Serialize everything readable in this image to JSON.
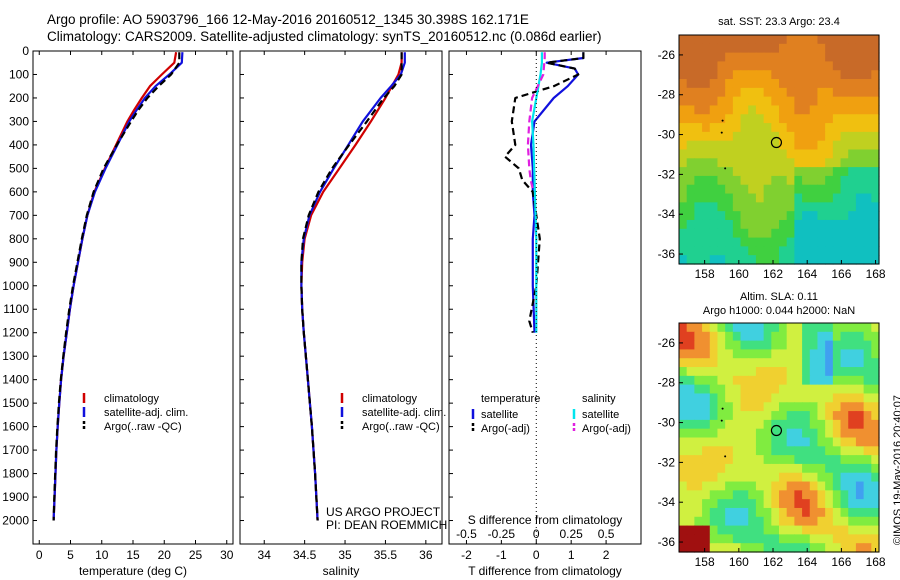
{
  "header": {
    "line1": "Argo profile: AO 5903796_166 12-May-2016 20160512_1345 30.398S 162.171E",
    "line2": "Climatology: CARS2009. Satellite-adjusted climatology: synTS_20160512.nc (0.086d earlier)"
  },
  "colors": {
    "climatology": "#d00000",
    "satellite": "#1010dd",
    "argo": "#000000",
    "s_satellite": "#00e5ee",
    "s_argo": "#e020e0"
  },
  "chart_data": [
    {
      "type": "line",
      "panel": "temperature",
      "xlabel": "temperature (deg C)",
      "ylabel": "",
      "xlim": [
        -1,
        31
      ],
      "ylim": [
        2100,
        0
      ],
      "x_ticks": [
        0,
        5,
        10,
        15,
        20,
        25,
        30
      ],
      "y_ticks": [
        0,
        100,
        200,
        300,
        400,
        500,
        600,
        700,
        800,
        900,
        1000,
        1100,
        1200,
        1300,
        1400,
        1500,
        1600,
        1700,
        1800,
        1900,
        2000
      ],
      "legend": [
        "climatology",
        "satellite-adj. clim.",
        "Argo(..raw -QC)"
      ],
      "legend_loc": "lower-center",
      "series": [
        {
          "name": "climatology",
          "style": "solid",
          "color": "#d00000",
          "depth": [
            5,
            50,
            100,
            150,
            200,
            250,
            300,
            400,
            500,
            600,
            700,
            800,
            900,
            1000,
            1100,
            1200,
            1300,
            1400,
            1500,
            1600,
            1700,
            1800,
            1900,
            2000
          ],
          "values": [
            21.9,
            21.6,
            19.6,
            17.7,
            16.4,
            15.2,
            14.1,
            12.3,
            10.5,
            8.8,
            7.7,
            6.9,
            6.2,
            5.5,
            4.9,
            4.4,
            3.9,
            3.5,
            3.2,
            2.95,
            2.75,
            2.6,
            2.45,
            2.3
          ]
        },
        {
          "name": "satellite-adj. clim.",
          "style": "solid",
          "color": "#1010dd",
          "depth": [
            5,
            50,
            100,
            150,
            200,
            250,
            300,
            400,
            500,
            600,
            700,
            800,
            900,
            1000,
            1100,
            1200,
            1300,
            1400,
            1500,
            1600,
            1700,
            1800,
            1900,
            2000
          ],
          "values": [
            22.9,
            22.8,
            20.8,
            18.6,
            16.9,
            15.6,
            14.4,
            12.5,
            10.6,
            8.9,
            7.7,
            6.9,
            6.2,
            5.5,
            4.9,
            4.4,
            3.9,
            3.5,
            3.2,
            2.95,
            2.75,
            2.6,
            2.45,
            2.3
          ]
        },
        {
          "name": "Argo(..raw -QC)",
          "style": "dashed",
          "color": "#000000",
          "depth": [
            5,
            50,
            100,
            150,
            200,
            250,
            300,
            400,
            500,
            600,
            700,
            800,
            900,
            1000,
            1100,
            1200,
            1300,
            1400,
            1500,
            1600,
            1700,
            1800,
            1900,
            2000
          ],
          "values": [
            22.4,
            22.4,
            21.1,
            19.1,
            17.3,
            15.9,
            14.7,
            12.4,
            10.3,
            8.7,
            7.6,
            6.8,
            6.1,
            5.4,
            4.8,
            4.3,
            3.85,
            3.45,
            3.15,
            2.9,
            2.7,
            2.55,
            2.4,
            2.3
          ]
        }
      ]
    },
    {
      "type": "line",
      "panel": "salinity",
      "xlabel": "salinity",
      "ylabel": "",
      "xlim": [
        33.7,
        36.2
      ],
      "ylim": [
        2100,
        0
      ],
      "x_ticks": [
        34,
        34.5,
        35,
        35.5,
        36
      ],
      "legend": [
        "climatology",
        "satellite-adj. clim.",
        "Argo(..raw -QC)"
      ],
      "legend_loc": "lower-center",
      "annotation": [
        "US ARGO PROJECT",
        "PI: DEAN ROEMMICH"
      ],
      "series": [
        {
          "name": "climatology",
          "style": "solid",
          "color": "#d00000",
          "depth": [
            5,
            50,
            100,
            150,
            200,
            300,
            400,
            500,
            600,
            700,
            800,
            900,
            1000,
            1100,
            1200,
            1400,
            1600,
            1800,
            2000
          ],
          "values": [
            35.7,
            35.7,
            35.66,
            35.58,
            35.5,
            35.32,
            35.13,
            34.93,
            34.73,
            34.58,
            34.5,
            34.47,
            34.46,
            34.47,
            34.49,
            34.54,
            34.59,
            34.63,
            34.66
          ]
        },
        {
          "name": "satellite-adj. clim.",
          "style": "solid",
          "color": "#1010dd",
          "depth": [
            5,
            50,
            100,
            150,
            200,
            300,
            400,
            500,
            600,
            700,
            800,
            900,
            1000,
            1100,
            1200,
            1400,
            1600,
            1800,
            2000
          ],
          "values": [
            35.74,
            35.74,
            35.69,
            35.57,
            35.44,
            35.22,
            35.04,
            34.86,
            34.69,
            34.56,
            34.49,
            34.46,
            34.46,
            34.47,
            34.49,
            34.54,
            34.59,
            34.63,
            34.66
          ]
        },
        {
          "name": "Argo(..raw -QC)",
          "style": "dashed",
          "color": "#000000",
          "depth": [
            5,
            50,
            100,
            150,
            200,
            300,
            400,
            500,
            600,
            700,
            800,
            900,
            1000,
            1100,
            1200,
            1400,
            1600,
            1800,
            2000
          ],
          "values": [
            35.7,
            35.7,
            35.7,
            35.61,
            35.48,
            35.27,
            35.05,
            34.84,
            34.67,
            34.55,
            34.48,
            34.46,
            34.46,
            34.47,
            34.49,
            34.54,
            34.59,
            34.63,
            34.66
          ]
        }
      ]
    },
    {
      "type": "line",
      "panel": "difference",
      "xlabel": "T difference from climatology",
      "xlabel_top": "S difference from climatology",
      "xlim": [
        -2.5,
        3.0
      ],
      "ylim": [
        2100,
        0
      ],
      "x_ticks": [
        -2,
        -1,
        0,
        1,
        2
      ],
      "s_ticks": [
        -0.5,
        -0.25,
        0,
        0.25,
        0.5
      ],
      "s_scale": 4,
      "legend_headers": [
        "temperature",
        "salinity"
      ],
      "legend": [
        "satellite",
        "Argo(-adj)",
        "satellite",
        "Argo(-adj)"
      ],
      "series": [
        {
          "name": "satellite",
          "group": "temperature",
          "style": "solid",
          "color": "#1010dd",
          "depth": [
            5,
            30,
            50,
            75,
            100,
            150,
            200,
            300,
            400,
            500,
            600,
            700,
            800,
            1000,
            1200
          ],
          "values": [
            1.35,
            1.35,
            0.3,
            1.1,
            1.2,
            0.9,
            0.5,
            -0.05,
            -0.15,
            -0.1,
            -0.1,
            -0.05,
            -0.1,
            -0.1,
            -0.05
          ]
        },
        {
          "name": "Argo(-adj)",
          "group": "temperature",
          "style": "dashed",
          "color": "#000000",
          "depth": [
            5,
            30,
            50,
            75,
            100,
            150,
            200,
            300,
            400,
            450,
            500,
            550,
            600,
            700,
            800,
            1000,
            1150,
            1200
          ],
          "values": [
            1.35,
            1.35,
            0.3,
            1.1,
            1.2,
            0.5,
            -0.6,
            -0.7,
            -0.6,
            -0.9,
            -0.5,
            -0.4,
            -0.1,
            0.0,
            0.1,
            0.0,
            -0.2,
            -0.1
          ]
        },
        {
          "name": "satellite",
          "group": "salinity",
          "style": "solid",
          "color": "#00e5ee",
          "depth": [
            5,
            50,
            100,
            200,
            300,
            400,
            500,
            600,
            800,
            1000,
            1200
          ],
          "values": [
            0.04,
            0.04,
            0.03,
            0.0,
            -0.03,
            -0.02,
            -0.015,
            -0.01,
            0.0,
            0.0,
            0.0
          ]
        },
        {
          "name": "Argo(-adj)",
          "group": "salinity",
          "style": "dashed",
          "color": "#e020e0",
          "depth": [
            5,
            30,
            100,
            200,
            300,
            400,
            500,
            550,
            600
          ],
          "values": [
            0.06,
            0.06,
            0.05,
            -0.03,
            -0.05,
            -0.06,
            -0.05,
            -0.04,
            -0.02
          ]
        }
      ]
    },
    {
      "type": "heatmap",
      "panel": "sst_map",
      "title": "sat. SST: 23.3 Argo: 23.4",
      "xlim": [
        156.5,
        168.2
      ],
      "ylim": [
        -36.5,
        -25.0
      ],
      "x_ticks": [
        158,
        160,
        162,
        164,
        166,
        168
      ],
      "y_ticks": [
        -26,
        -28,
        -30,
        -32,
        -34,
        -36
      ],
      "marker": [
        162.2,
        -30.4
      ]
    },
    {
      "type": "heatmap",
      "panel": "sla_map",
      "title": "Altim. SLA: 0.11",
      "subtitle": "Argo h1000: 0.044 h2000: NaN",
      "xlim": [
        156.5,
        168.2
      ],
      "ylim": [
        -36.5,
        -25.0
      ],
      "x_ticks": [
        158,
        160,
        162,
        164,
        166,
        168
      ],
      "y_ticks": [
        -26,
        -28,
        -30,
        -32,
        -34,
        -36
      ],
      "marker": [
        162.2,
        -30.4
      ]
    }
  ],
  "footer": {
    "stamp": "©IMOS 19-May-2016 20:40:07"
  }
}
